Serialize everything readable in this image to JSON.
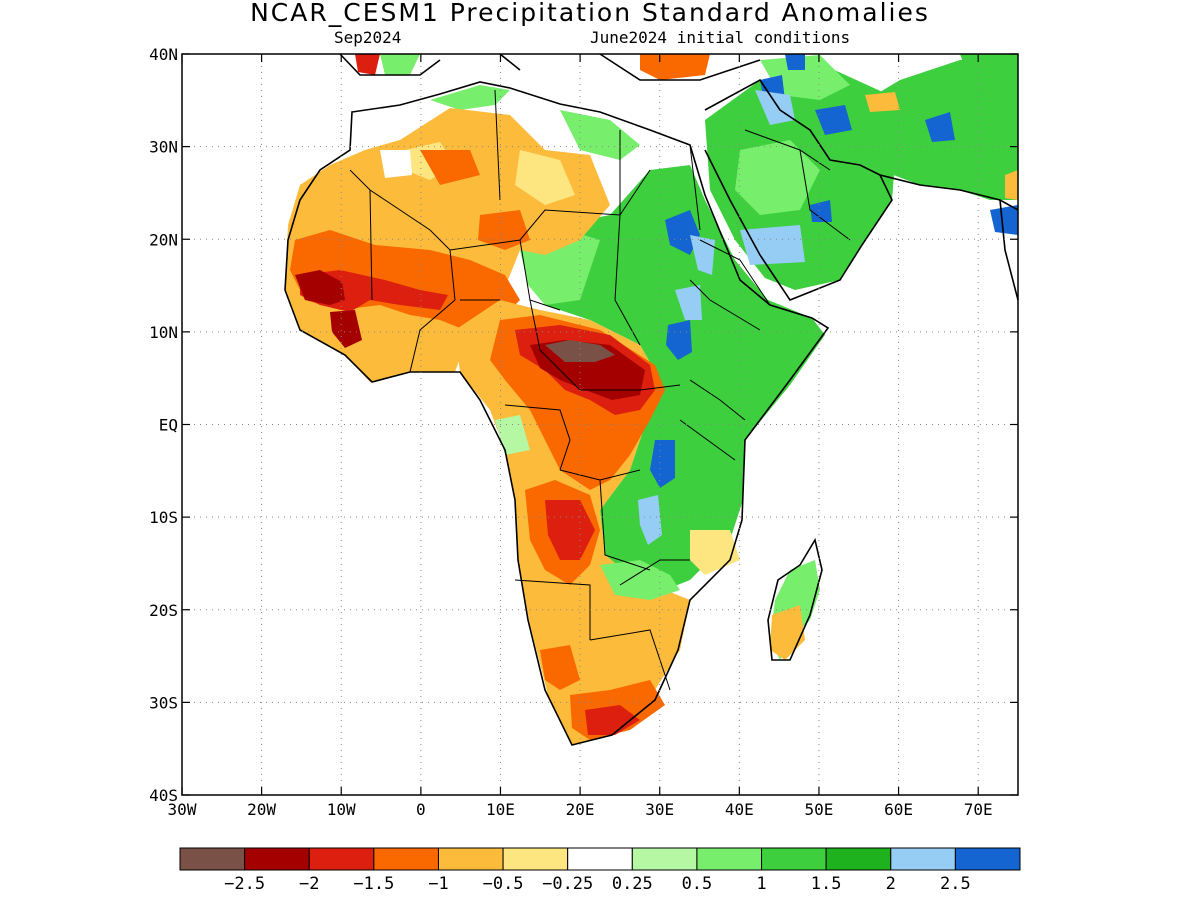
{
  "title": "NCAR_CESM1 Precipitation Standard Anomalies",
  "subtitle_left": "Sep2024",
  "subtitle_right": "June2024 initial conditions",
  "map": {
    "lon_range": [
      -30,
      75
    ],
    "lat_range": [
      -40,
      40
    ],
    "lat_ticks": [
      {
        "value": 40,
        "label": "40N"
      },
      {
        "value": 30,
        "label": "30N"
      },
      {
        "value": 20,
        "label": "20N"
      },
      {
        "value": 10,
        "label": "10N"
      },
      {
        "value": 0,
        "label": "EQ"
      },
      {
        "value": -10,
        "label": "10S"
      },
      {
        "value": -20,
        "label": "20S"
      },
      {
        "value": -30,
        "label": "30S"
      },
      {
        "value": -40,
        "label": "40S"
      }
    ],
    "lon_ticks": [
      {
        "value": -30,
        "label": "30W"
      },
      {
        "value": -20,
        "label": "20W"
      },
      {
        "value": -10,
        "label": "10W"
      },
      {
        "value": 0,
        "label": "0"
      },
      {
        "value": 10,
        "label": "10E"
      },
      {
        "value": 20,
        "label": "20E"
      },
      {
        "value": 30,
        "label": "30E"
      },
      {
        "value": 40,
        "label": "40E"
      },
      {
        "value": 50,
        "label": "50E"
      },
      {
        "value": 60,
        "label": "60E"
      },
      {
        "value": 70,
        "label": "70E"
      }
    ],
    "grid": true
  },
  "colorbar": {
    "colors": [
      "#7a5147",
      "#a50000",
      "#dc1f0f",
      "#f96900",
      "#fcbb3b",
      "#fde680",
      "#ffffff",
      "#b5f7a3",
      "#78ee6d",
      "#3dcf3d",
      "#1eb21e",
      "#96cdf5",
      "#1464d2"
    ],
    "labels": [
      "−2.5",
      "−2",
      "−1.5",
      "−1",
      "−0.5",
      "−0.25",
      "0.25",
      "0.5",
      "1",
      "1.5",
      "2",
      "2.5"
    ]
  }
}
